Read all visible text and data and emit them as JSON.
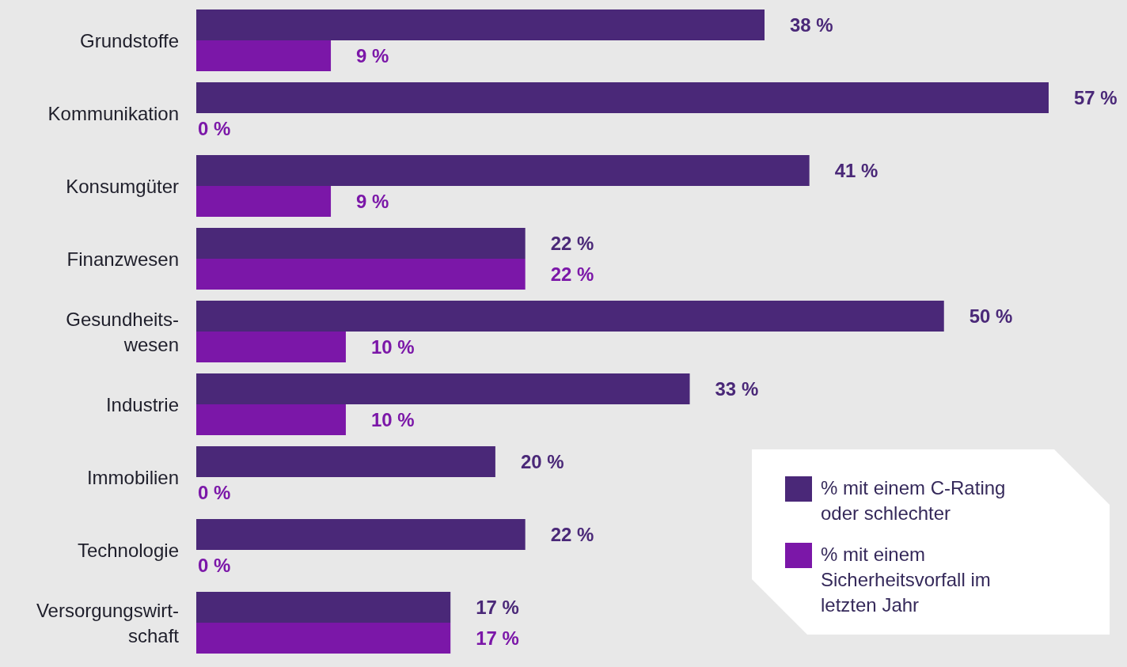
{
  "chart_data": {
    "type": "bar",
    "orientation": "horizontal",
    "categories": [
      "Grundstoffe",
      "Kommunikation",
      "Konsumgüter",
      "Finanzwesen",
      "Gesundheits-wesen",
      "Industrie",
      "Immobilien",
      "Technologie",
      "Versorgungswirt-schaft"
    ],
    "series": [
      {
        "name": "% mit einem C-Rating oder schlechter",
        "color": "#4a2878",
        "values": [
          38,
          57,
          41,
          22,
          50,
          33,
          20,
          22,
          17
        ],
        "value_labels": [
          "38 %",
          "57 %",
          "41 %",
          "22 %",
          "50 %",
          "33 %",
          "20 %",
          "22 %",
          "17 %"
        ]
      },
      {
        "name": "% mit einem Sicherheitsvorfall im letzten Jahr",
        "color": "#7b17a8",
        "values": [
          9,
          0,
          9,
          22,
          10,
          10,
          0,
          0,
          17
        ],
        "value_labels": [
          "9 %",
          "0 %",
          "9 %",
          "22 %",
          "10 %",
          "10 %",
          "0 %",
          "0 %",
          "17 %"
        ]
      }
    ],
    "legend": "bottom right"
  }
}
